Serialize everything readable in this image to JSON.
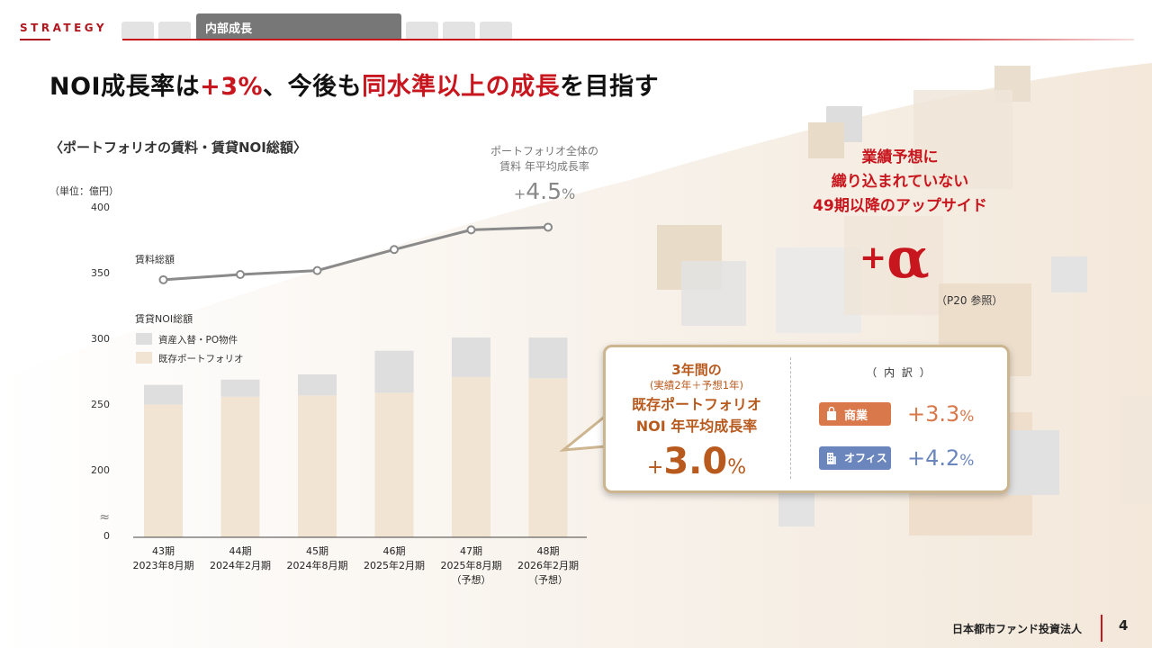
{
  "header": {
    "section": "STRATEGY",
    "active_tab": "内部成長"
  },
  "title": {
    "part1": "NOI成長率は",
    "part2": "+3%",
    "part3": "、今後も",
    "part4": "同水準以上の成長",
    "part5": "を目指す"
  },
  "chart_data": {
    "type": "bar",
    "title": "〈ポートフォリオの賃料・賃貸NOI総額〉",
    "unit": "（単位：億円）",
    "categories": [
      "43期",
      "44期",
      "45期",
      "46期",
      "47期",
      "48期"
    ],
    "category_sublabels": [
      [
        "2023年8月期"
      ],
      [
        "2024年2月期"
      ],
      [
        "2024年8月期"
      ],
      [
        "2025年2月期"
      ],
      [
        "2025年8月期",
        "（予想）"
      ],
      [
        "2026年2月期",
        "（予想）"
      ]
    ],
    "yticks": [
      0,
      200,
      250,
      300,
      350,
      400
    ],
    "axis_break": "≈",
    "ylim": [
      200,
      400
    ],
    "noi_label": "賃貸NOI総額",
    "series": [
      {
        "name": "既存ポートフォリオ",
        "values": [
          251,
          257,
          258,
          260,
          272,
          271
        ],
        "color": "#f1e4d3"
      },
      {
        "name": "資産入替・PO物件",
        "values": [
          15,
          13,
          16,
          32,
          30,
          31
        ],
        "color": "#dedede"
      }
    ],
    "line_series": {
      "name": "賃料総額",
      "values": [
        346,
        350,
        353,
        369,
        384,
        386
      ],
      "color": "#8a8a8a"
    },
    "annotation": {
      "line1": "ポートフォリオ全体の",
      "line2": "賃料 年平均成長率",
      "plus": "+",
      "value": "4.5",
      "percent": "%"
    }
  },
  "callout": {
    "title": "3年間の",
    "subtitle": "(実績2年＋予想1年)",
    "main1": "既存ポートフォリオ",
    "main2": "NOI 年平均成長率",
    "plus": "+",
    "value": "3.0",
    "percent": "%",
    "breakdown_title": "（ 内 訳 ）",
    "categories": [
      {
        "label": "商業",
        "plus": "+",
        "value": "3.3",
        "percent": "%",
        "color": "#d9784a"
      },
      {
        "label": "オフィス",
        "plus": "+",
        "value": "4.2",
        "percent": "%",
        "color": "#6a86bd"
      }
    ]
  },
  "upside": {
    "line1": "業績予想に",
    "line2": "織り込まれていない",
    "line3": "49期以降のアップサイド",
    "plus": "+",
    "alpha": "α",
    "ref": "（P20 参照）"
  },
  "footer": {
    "company": "日本都市ファンド投資法人",
    "page": "4"
  }
}
